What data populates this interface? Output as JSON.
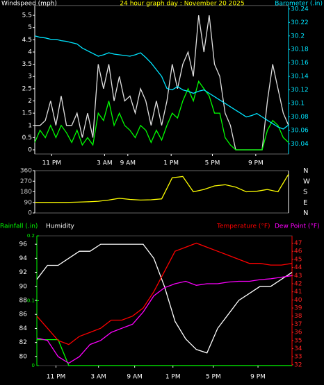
{
  "chart_data": [
    {
      "type": "line",
      "title": "24 hour graph day : November 20 2025",
      "ylabel": "Windspeed (mph)",
      "y2label": "Barometer (.in)",
      "x": [
        0,
        0.5,
        1,
        1.5,
        2,
        2.5,
        3,
        3.5,
        4,
        4.5,
        5,
        5.5,
        6,
        6.5,
        7,
        7.5,
        8,
        8.5,
        9,
        9.5,
        10,
        10.5,
        11,
        11.5,
        12,
        12.5,
        13,
        13.5,
        14,
        14.5,
        15,
        15.5,
        16,
        16.5,
        17,
        17.5,
        18,
        18.5,
        19,
        19.5,
        20,
        20.5,
        21,
        21.5,
        22,
        22.5,
        23,
        23.5,
        24
      ],
      "xlim": [
        0,
        24
      ],
      "xticks": [
        {
          "value": 1.6,
          "label": "11 PM"
        },
        {
          "value": 6.6,
          "label": "3 AM"
        },
        {
          "value": 8.8,
          "label": "9 AM"
        },
        {
          "value": 12.9,
          "label": "1 PM"
        },
        {
          "value": 16.8,
          "label": "5 PM"
        },
        {
          "value": 20.9,
          "label": "9 PM"
        }
      ],
      "ylim": [
        -0.17,
        5.9
      ],
      "yticks": [
        0,
        0.5,
        1,
        1.5,
        2,
        2.5,
        3,
        3.5,
        4,
        4.5,
        5,
        5.5
      ],
      "y2lim": [
        30.025,
        30.245
      ],
      "y2ticks": [
        30.04,
        30.06,
        30.08,
        30.1,
        30.12,
        30.14,
        30.16,
        30.18,
        30.2,
        30.22,
        30.24
      ],
      "series": [
        {
          "color": "#e0e0e0",
          "values": [
            1,
            1,
            1.2,
            2,
            1,
            2.2,
            1,
            1,
            1.5,
            0.5,
            1.5,
            0.5,
            3.5,
            2.5,
            3.5,
            2,
            3,
            2,
            2.2,
            1.5,
            2.5,
            2,
            1,
            2,
            1,
            2,
            3.5,
            2.5,
            3.5,
            4,
            3,
            5.5,
            4,
            5.5,
            3.5,
            3,
            1.5,
            1,
            0,
            0,
            0,
            0,
            0,
            0,
            2,
            3.5,
            2.5,
            1.5,
            1
          ]
        },
        {
          "color": "#00ff00",
          "values": [
            0.3,
            0.8,
            0.5,
            1,
            0.5,
            1,
            0.7,
            0.3,
            0.8,
            0.2,
            0.5,
            0.2,
            1.5,
            1.2,
            2,
            1,
            1.5,
            1,
            0.8,
            0.5,
            1,
            0.8,
            0.3,
            0.8,
            0.4,
            1,
            1.5,
            1.3,
            2,
            2.5,
            2,
            2.8,
            2.5,
            2.2,
            1.5,
            1.5,
            0.5,
            0.2,
            0,
            0,
            0,
            0,
            0,
            0,
            0.8,
            1.2,
            1,
            0.5,
            0.3
          ]
        },
        {
          "color": "#00e5ff",
          "axis": "y2",
          "values": [
            30.2,
            30.198,
            30.197,
            30.195,
            30.195,
            30.193,
            30.192,
            30.19,
            30.188,
            30.182,
            30.178,
            30.174,
            30.17,
            30.172,
            30.175,
            30.173,
            30.172,
            30.171,
            30.17,
            30.172,
            30.175,
            30.168,
            30.16,
            30.15,
            30.14,
            30.122,
            30.12,
            30.125,
            30.12,
            30.118,
            30.115,
            30.118,
            30.12,
            30.115,
            30.11,
            30.105,
            30.1,
            30.095,
            30.09,
            30.085,
            30.08,
            30.082,
            30.085,
            30.08,
            30.075,
            30.07,
            30.065,
            30.062,
            30.068
          ]
        }
      ]
    },
    {
      "type": "line",
      "x": [
        0,
        1,
        2,
        3,
        4,
        5,
        6,
        7,
        8,
        9,
        10,
        11,
        12,
        13,
        14,
        15,
        16,
        17,
        18,
        19,
        20,
        21,
        22,
        23,
        24
      ],
      "xlim": [
        0,
        24
      ],
      "ylim": [
        0,
        360
      ],
      "yticks": [
        0,
        90,
        180,
        270,
        360
      ],
      "y2lim": [
        0,
        360
      ],
      "y2ticks": [
        {
          "value": 360,
          "label": "N"
        },
        {
          "value": 270,
          "label": "W"
        },
        {
          "value": 180,
          "label": "S"
        },
        {
          "value": 90,
          "label": "E"
        },
        {
          "value": 0,
          "label": "N"
        }
      ],
      "series": [
        {
          "color": "#ffff00",
          "values": [
            90,
            90,
            90,
            90,
            92,
            95,
            100,
            110,
            125,
            115,
            110,
            112,
            120,
            300,
            310,
            180,
            200,
            230,
            240,
            220,
            180,
            185,
            200,
            180,
            330
          ]
        }
      ]
    },
    {
      "type": "line",
      "x": [
        0,
        1,
        2,
        3,
        4,
        5,
        6,
        7,
        8,
        9,
        10,
        11,
        12,
        13,
        14,
        15,
        16,
        17,
        18,
        19,
        20,
        21,
        22,
        23,
        24
      ],
      "xlim": [
        0,
        24
      ],
      "xticks": [
        {
          "value": 1.8,
          "label": "11 PM"
        },
        {
          "value": 5.8,
          "label": "3 AM"
        },
        {
          "value": 9.2,
          "label": "9 AM"
        },
        {
          "value": 12.8,
          "label": "1 PM"
        },
        {
          "value": 16.6,
          "label": "5 PM"
        },
        {
          "value": 20.8,
          "label": "9 PM"
        }
      ],
      "ylim": [
        78.7,
        97.2
      ],
      "yticks": [
        80,
        82,
        84,
        86,
        88,
        90,
        92,
        94,
        96
      ],
      "y2lim": [
        31.9,
        47.9
      ],
      "y2ticks": [
        32,
        33,
        34,
        35,
        36,
        37,
        38,
        39,
        40,
        41,
        42,
        43,
        44,
        45,
        46,
        47
      ],
      "y3lim": [
        0,
        0.2
      ],
      "y3ticks": [
        0,
        0.1,
        0.2
      ],
      "series": [
        {
          "name": "Rainfall (.in)",
          "color": "#00ff00",
          "axis": "y3",
          "values": [
            0.04,
            0.04,
            0.04,
            0,
            0,
            0,
            0,
            0,
            0,
            0,
            0,
            0,
            0,
            0,
            0,
            0,
            0,
            0,
            0,
            0,
            0,
            0,
            0,
            0,
            0
          ]
        },
        {
          "name": "Humidity",
          "color": "#ffffff",
          "values": [
            91,
            93,
            93,
            94,
            95,
            95,
            96,
            96,
            96,
            96,
            96,
            94,
            90,
            85,
            82.5,
            81,
            80.5,
            84,
            86,
            88,
            89,
            90,
            90,
            91,
            92
          ]
        },
        {
          "name": "Temperature (°F)",
          "color": "#ff0000",
          "axis": "y2",
          "values": [
            38,
            36.5,
            35,
            34.5,
            35.5,
            36,
            36.5,
            37.5,
            37.5,
            38,
            39,
            41,
            43.5,
            46,
            46.5,
            47,
            46.5,
            46,
            45.5,
            45,
            44.5,
            44.5,
            44.3,
            44.3,
            44.5
          ]
        },
        {
          "name": "Dew Point (°F)",
          "color": "#ff00ff",
          "axis": "y2",
          "values": [
            35.3,
            35,
            33,
            32.2,
            33,
            34.5,
            35,
            36,
            36.5,
            37,
            38.5,
            40.5,
            41.5,
            42,
            42.3,
            41.8,
            42,
            42,
            42.2,
            42.3,
            42.3,
            42.5,
            42.6,
            42.8,
            43
          ]
        }
      ]
    }
  ]
}
